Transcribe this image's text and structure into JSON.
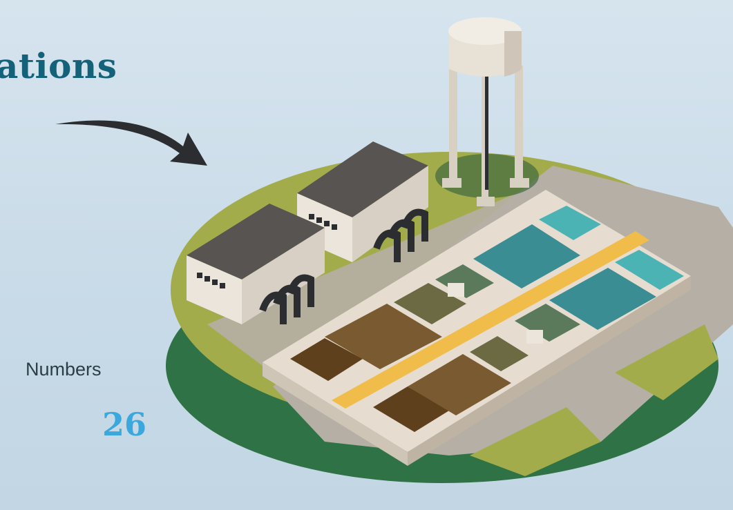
{
  "header": {
    "title": "ations"
  },
  "stats": {
    "label": "Numbers",
    "value": "26"
  },
  "icons": {
    "pointer": "curved-arrow-icon",
    "scene": "water-treatment-plant-illustration"
  },
  "colors": {
    "title": "#14627a",
    "label": "#2c3d47",
    "value": "#3aa8dc",
    "ground_top": "#a3ac4b",
    "ground_side": "#2f7245",
    "road": "#b6afa5",
    "walkway": "#f0bd4a",
    "clean_water": "#3a8d93",
    "light_water": "#4cb3b4",
    "green_water": "#5b7a5b",
    "brown_water": "#7a5a30",
    "dark_brown_water": "#5e401d"
  }
}
